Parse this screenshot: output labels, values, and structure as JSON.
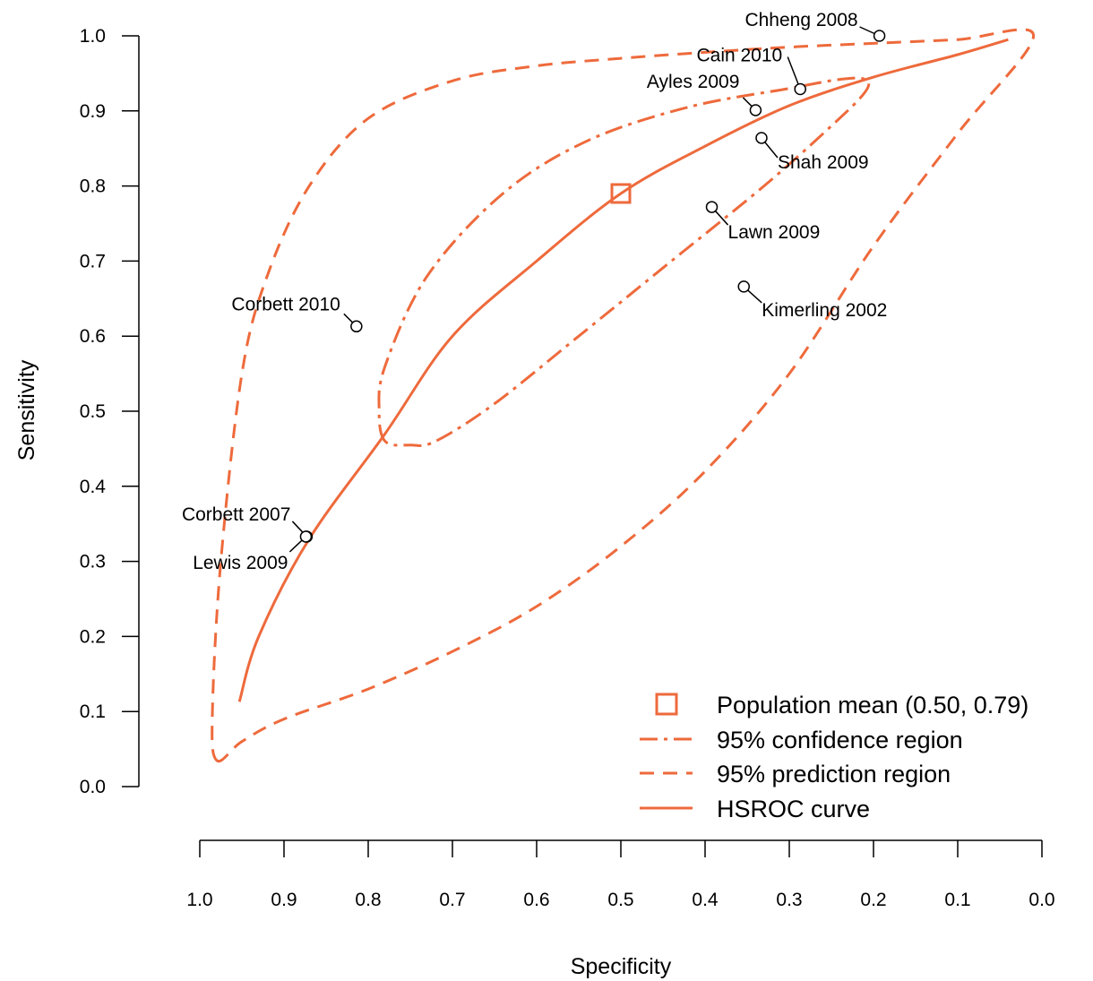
{
  "chart_data": {
    "type": "scatter",
    "xlabel": "Specificity",
    "ylabel": "Sensitivity",
    "x_reversed": true,
    "xlim": [
      1.0,
      0.0
    ],
    "ylim": [
      0.0,
      1.0
    ],
    "x_ticks": [
      "1.0",
      "0.9",
      "0.8",
      "0.7",
      "0.6",
      "0.5",
      "0.4",
      "0.3",
      "0.2",
      "0.1",
      "0.0"
    ],
    "y_ticks": [
      "0.0",
      "0.1",
      "0.2",
      "0.3",
      "0.4",
      "0.5",
      "0.6",
      "0.7",
      "0.8",
      "0.9",
      "1.0"
    ],
    "grid": false,
    "legend_position": "bottom-right",
    "accent_color": "#EE6A3C",
    "studies": [
      {
        "label": "Chheng 2008",
        "specificity": 0.193,
        "sensitivity": 1.0
      },
      {
        "label": "Cain 2010",
        "specificity": 0.287,
        "sensitivity": 0.929
      },
      {
        "label": "Ayles 2009",
        "specificity": 0.34,
        "sensitivity": 0.901
      },
      {
        "label": "Shah 2009",
        "specificity": 0.333,
        "sensitivity": 0.864
      },
      {
        "label": "Lawn 2009",
        "specificity": 0.392,
        "sensitivity": 0.772
      },
      {
        "label": "Kimerling 2002",
        "specificity": 0.354,
        "sensitivity": 0.666
      },
      {
        "label": "Corbett 2010",
        "specificity": 0.814,
        "sensitivity": 0.613
      },
      {
        "label": "Corbett 2007",
        "specificity": 0.873,
        "sensitivity": 0.333
      },
      {
        "label": "Lewis 2009",
        "specificity": 0.874,
        "sensitivity": 0.333
      }
    ],
    "population_mean": {
      "specificity": 0.5,
      "sensitivity": 0.79
    },
    "hsroc_curve": [
      [
        0.953,
        0.113
      ],
      [
        0.93,
        0.2
      ],
      [
        0.87,
        0.33
      ],
      [
        0.78,
        0.47
      ],
      [
        0.7,
        0.6
      ],
      [
        0.6,
        0.7
      ],
      [
        0.5,
        0.79
      ],
      [
        0.4,
        0.853
      ],
      [
        0.3,
        0.907
      ],
      [
        0.2,
        0.945
      ],
      [
        0.1,
        0.975
      ],
      [
        0.04,
        0.995
      ]
    ],
    "confidence_region": [
      [
        0.78,
        0.46
      ],
      [
        0.787,
        0.5
      ],
      [
        0.78,
        0.56
      ],
      [
        0.73,
        0.68
      ],
      [
        0.64,
        0.79
      ],
      [
        0.54,
        0.86
      ],
      [
        0.42,
        0.905
      ],
      [
        0.3,
        0.93
      ],
      [
        0.24,
        0.942
      ],
      [
        0.21,
        0.942
      ],
      [
        0.21,
        0.925
      ],
      [
        0.25,
        0.88
      ],
      [
        0.33,
        0.8
      ],
      [
        0.44,
        0.7
      ],
      [
        0.55,
        0.6
      ],
      [
        0.65,
        0.51
      ],
      [
        0.72,
        0.46
      ],
      [
        0.75,
        0.455
      ],
      [
        0.78,
        0.46
      ]
    ],
    "prediction_region": [
      [
        0.98,
        0.035
      ],
      [
        0.95,
        0.06
      ],
      [
        0.9,
        0.09
      ],
      [
        0.8,
        0.13
      ],
      [
        0.7,
        0.18
      ],
      [
        0.6,
        0.24
      ],
      [
        0.5,
        0.32
      ],
      [
        0.4,
        0.42
      ],
      [
        0.3,
        0.55
      ],
      [
        0.2,
        0.72
      ],
      [
        0.1,
        0.87
      ],
      [
        0.01,
        1.0
      ],
      [
        0.1,
        0.995
      ],
      [
        0.2,
        0.99
      ],
      [
        0.3,
        0.985
      ],
      [
        0.4,
        0.978
      ],
      [
        0.5,
        0.97
      ],
      [
        0.6,
        0.96
      ],
      [
        0.7,
        0.94
      ],
      [
        0.8,
        0.89
      ],
      [
        0.87,
        0.8
      ],
      [
        0.92,
        0.68
      ],
      [
        0.95,
        0.55
      ],
      [
        0.975,
        0.3
      ],
      [
        0.985,
        0.1
      ],
      [
        0.98,
        0.035
      ]
    ],
    "legend": [
      {
        "key": "mean",
        "label": "Population mean (0.50, 0.79)"
      },
      {
        "key": "confidence",
        "label": "95% confidence region"
      },
      {
        "key": "prediction",
        "label": "95% prediction region"
      },
      {
        "key": "curve",
        "label": "HSROC curve"
      }
    ]
  }
}
